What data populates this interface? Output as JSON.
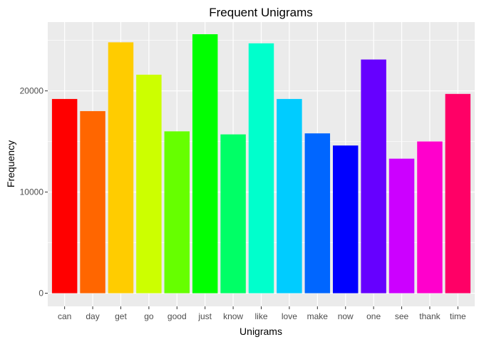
{
  "chart_data": {
    "type": "bar",
    "title": "Frequent Unigrams",
    "xlabel": "Unigrams",
    "ylabel": "Frequency",
    "categories": [
      "can",
      "day",
      "get",
      "go",
      "good",
      "just",
      "know",
      "like",
      "love",
      "make",
      "now",
      "one",
      "see",
      "thank",
      "time"
    ],
    "values": [
      19200,
      18000,
      24800,
      21600,
      16000,
      25600,
      15700,
      24700,
      19200,
      15800,
      14600,
      23100,
      13300,
      15000,
      19700
    ],
    "colors": [
      "#ff0000",
      "#ff6600",
      "#ffcc00",
      "#ccff00",
      "#66ff00",
      "#00ff00",
      "#00ff66",
      "#00ffcc",
      "#00ccff",
      "#0066ff",
      "#0000ff",
      "#6600ff",
      "#cc00ff",
      "#ff00cc",
      "#ff0066"
    ],
    "yticks": [
      0,
      10000,
      20000
    ],
    "ylim": [
      -1300,
      26800
    ],
    "grid": true,
    "legend": "none",
    "panel_background": "#ebebeb",
    "grid_color": "#ffffff"
  }
}
